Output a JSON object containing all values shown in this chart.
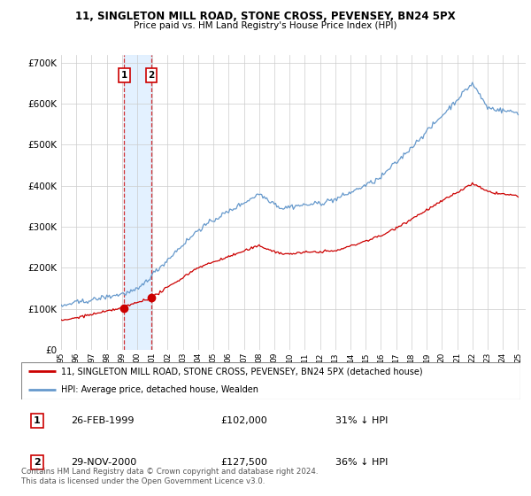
{
  "title": "11, SINGLETON MILL ROAD, STONE CROSS, PEVENSEY, BN24 5PX",
  "subtitle": "Price paid vs. HM Land Registry's House Price Index (HPI)",
  "legend_line1": "11, SINGLETON MILL ROAD, STONE CROSS, PEVENSEY, BN24 5PX (detached house)",
  "legend_line2": "HPI: Average price, detached house, Wealden",
  "transaction1_date": "26-FEB-1999",
  "transaction1_price": "£102,000",
  "transaction1_hpi": "31% ↓ HPI",
  "transaction1_year": 1999.15,
  "transaction1_value": 102000,
  "transaction2_date": "29-NOV-2000",
  "transaction2_price": "£127,500",
  "transaction2_hpi": "36% ↓ HPI",
  "transaction2_year": 2000.91,
  "transaction2_value": 127500,
  "footer": "Contains HM Land Registry data © Crown copyright and database right 2024.\nThis data is licensed under the Open Government Licence v3.0.",
  "hpi_color": "#6699cc",
  "price_color": "#cc0000",
  "marker_color": "#cc0000",
  "shade_color": "#ddeeff",
  "ylim_min": 0,
  "ylim_max": 720000,
  "xmin": 1995,
  "xmax": 2025.5
}
